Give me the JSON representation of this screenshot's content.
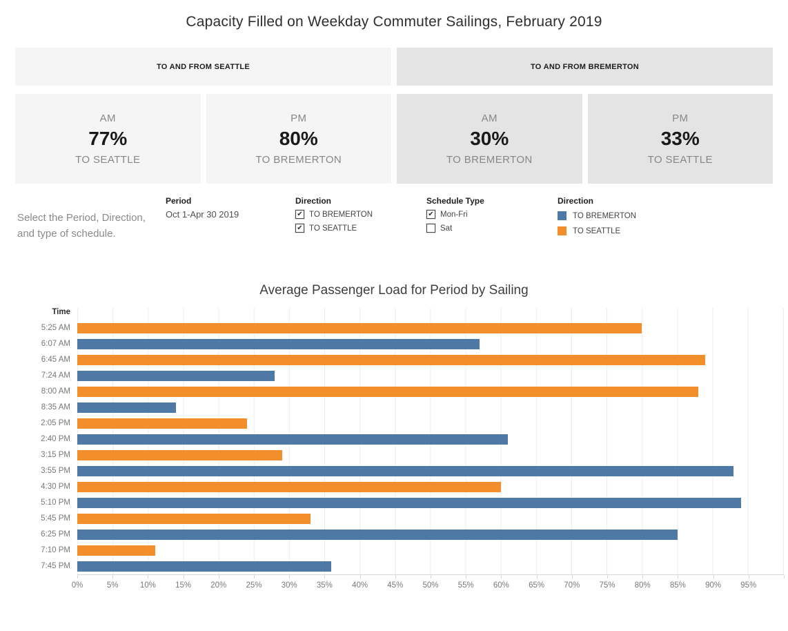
{
  "title": "Capacity Filled on Weekday Commuter Sailings, February 2019",
  "bands": [
    {
      "label": "TO AND FROM SEATTLE",
      "bg": "#f5f5f5"
    },
    {
      "label": "TO AND FROM BREMERTON",
      "bg": "#e4e4e4"
    }
  ],
  "kpi_cards": [
    {
      "period": "AM",
      "value": "77%",
      "direction": "TO SEATTLE",
      "bg": "#f5f5f5"
    },
    {
      "period": "PM",
      "value": "80%",
      "direction": "TO BREMERTON",
      "bg": "#f5f5f5"
    },
    {
      "period": "AM",
      "value": "30%",
      "direction": "TO BREMERTON",
      "bg": "#e4e4e4"
    },
    {
      "period": "PM",
      "value": "33%",
      "direction": "TO SEATTLE",
      "bg": "#e4e4e4"
    }
  ],
  "filters": {
    "instructions": "Select the Period, Direction, and type of schedule.",
    "period": {
      "label": "Period",
      "value": "Oct 1-Apr 30 2019"
    },
    "direction_filter": {
      "label": "Direction",
      "options": [
        {
          "label": "TO BREMERTON",
          "checked": true
        },
        {
          "label": "TO SEATTLE",
          "checked": true
        }
      ]
    },
    "schedule_type": {
      "label": "Schedule Type",
      "options": [
        {
          "label": "Mon-Fri",
          "checked": true
        },
        {
          "label": "Sat",
          "checked": false
        }
      ]
    },
    "legend": {
      "label": "Direction",
      "items": [
        {
          "label": "TO BREMERTON",
          "color": "#4e79a7"
        },
        {
          "label": "TO SEATTLE",
          "color": "#f28e2b"
        }
      ]
    }
  },
  "colors": {
    "TO BREMERTON": "#4e79a7",
    "TO SEATTLE": "#f28e2b"
  },
  "chart_data": {
    "type": "bar",
    "orientation": "horizontal",
    "title": "Average Passenger Load for Period by Sailing",
    "ylabel": "Time",
    "xlabel": "",
    "xlim": [
      0,
      100
    ],
    "grid": true,
    "x_tick_labels": [
      "0%",
      "5%",
      "10%",
      "15%",
      "20%",
      "25%",
      "30%",
      "35%",
      "40%",
      "45%",
      "50%",
      "55%",
      "60%",
      "65%",
      "70%",
      "75%",
      "80%",
      "85%",
      "90%",
      "95%"
    ],
    "rows": [
      {
        "time": "5:25 AM",
        "direction": "TO SEATTLE",
        "value": 80
      },
      {
        "time": "6:07 AM",
        "direction": "TO BREMERTON",
        "value": 57
      },
      {
        "time": "6:45 AM",
        "direction": "TO SEATTLE",
        "value": 89
      },
      {
        "time": "7:24 AM",
        "direction": "TO BREMERTON",
        "value": 28
      },
      {
        "time": "8:00 AM",
        "direction": "TO SEATTLE",
        "value": 88
      },
      {
        "time": "8:35 AM",
        "direction": "TO BREMERTON",
        "value": 14
      },
      {
        "time": "2:05 PM",
        "direction": "TO SEATTLE",
        "value": 24
      },
      {
        "time": "2:40 PM",
        "direction": "TO BREMERTON",
        "value": 61
      },
      {
        "time": "3:15 PM",
        "direction": "TO SEATTLE",
        "value": 29
      },
      {
        "time": "3:55 PM",
        "direction": "TO BREMERTON",
        "value": 93
      },
      {
        "time": "4:30 PM",
        "direction": "TO SEATTLE",
        "value": 60
      },
      {
        "time": "5:10 PM",
        "direction": "TO BREMERTON",
        "value": 94
      },
      {
        "time": "5:45 PM",
        "direction": "TO SEATTLE",
        "value": 33
      },
      {
        "time": "6:25 PM",
        "direction": "TO BREMERTON",
        "value": 85
      },
      {
        "time": "7:10 PM",
        "direction": "TO SEATTLE",
        "value": 11
      },
      {
        "time": "7:45 PM",
        "direction": "TO BREMERTON",
        "value": 36
      }
    ]
  }
}
